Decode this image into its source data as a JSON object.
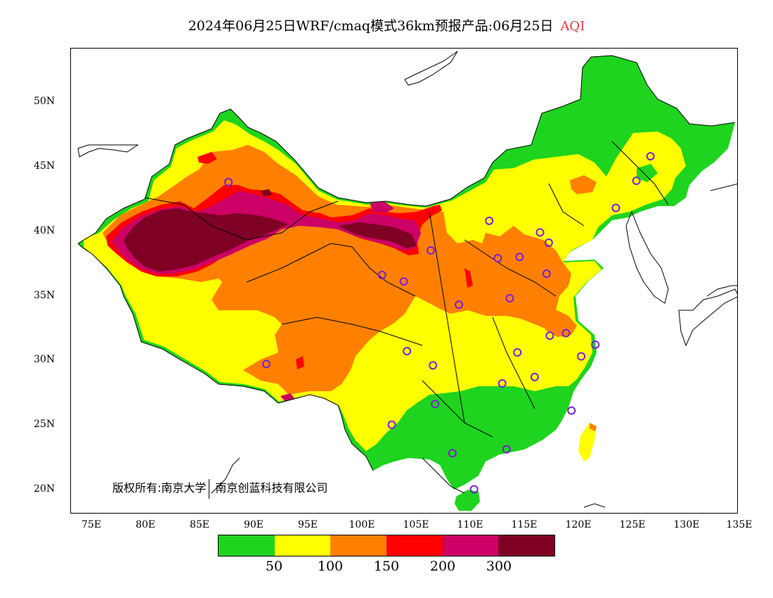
{
  "title": {
    "prefix": "2024年06月25日WRF/cmaq模式36km预报产品:06月25日",
    "variable": "AQI"
  },
  "axes": {
    "lat_labels": [
      "50N",
      "45N",
      "40N",
      "35N",
      "30N",
      "25N",
      "20N"
    ],
    "lon_labels": [
      "75E",
      "80E",
      "85E",
      "90E",
      "95E",
      "100E",
      "105E",
      "110E",
      "115E",
      "120E",
      "125E",
      "130E",
      "135E"
    ]
  },
  "copyright": {
    "text1": "版权所有:南京大学",
    "text2": "南京创蓝科技有限公司"
  },
  "legend": {
    "colors": [
      "#1ed41e",
      "#ffff00",
      "#ff8000",
      "#ff0000",
      "#cc0066",
      "#7e0023"
    ],
    "labels": [
      "50",
      "100",
      "150",
      "200",
      "300"
    ]
  },
  "cities": [
    [
      87.6,
      43.8
    ],
    [
      91.1,
      29.7
    ],
    [
      101.8,
      36.6
    ],
    [
      103.8,
      36.1
    ],
    [
      106.3,
      38.5
    ],
    [
      111.7,
      40.8
    ],
    [
      112.5,
      37.9
    ],
    [
      114.5,
      38.0
    ],
    [
      116.4,
      39.9
    ],
    [
      117.2,
      39.1
    ],
    [
      117.0,
      36.7
    ],
    [
      113.6,
      34.8
    ],
    [
      108.9,
      34.3
    ],
    [
      104.1,
      30.7
    ],
    [
      106.5,
      29.6
    ],
    [
      106.7,
      26.6
    ],
    [
      102.7,
      25.0
    ],
    [
      108.3,
      22.8
    ],
    [
      113.3,
      23.1
    ],
    [
      110.3,
      20.0
    ],
    [
      112.9,
      28.2
    ],
    [
      114.3,
      30.6
    ],
    [
      115.9,
      28.7
    ],
    [
      117.3,
      31.9
    ],
    [
      118.8,
      32.1
    ],
    [
      120.2,
      30.3
    ],
    [
      121.5,
      31.2
    ],
    [
      119.3,
      26.1
    ],
    [
      123.4,
      41.8
    ],
    [
      125.3,
      43.9
    ],
    [
      126.6,
      45.8
    ]
  ]
}
